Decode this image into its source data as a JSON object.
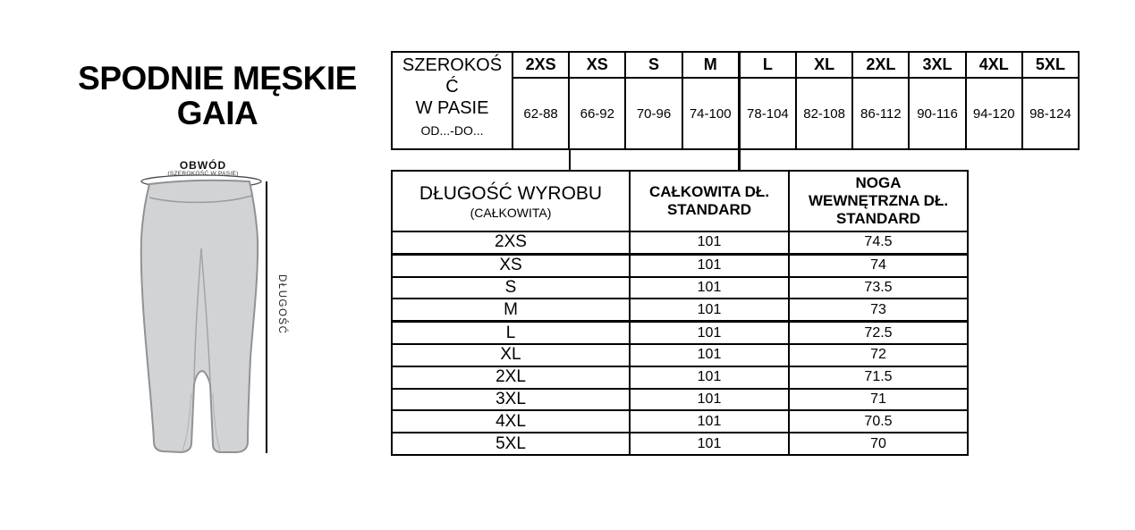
{
  "title": {
    "line1": "SPODNIE MĘSKIE",
    "line2": "GAIA"
  },
  "diagram": {
    "top_label": "OBWÓD",
    "top_sublabel": "(SZEROKOŚĆ W PASIE)",
    "side_label": "DŁUGOŚĆ",
    "garment_fill": "#d2d3d5",
    "garment_outline": "#909296"
  },
  "waist_table": {
    "header_title": "SZEROKOŚĆ",
    "header_line2": "W PASIE",
    "header_sub": "OD...-DO...",
    "sizes": [
      "2XS",
      "XS",
      "S",
      "M",
      "L",
      "XL",
      "2XL",
      "3XL",
      "4XL",
      "5XL"
    ],
    "ranges": [
      "62-88",
      "66-92",
      "70-96",
      "74-100",
      "78-104",
      "82-108",
      "86-112",
      "90-116",
      "94-120",
      "98-124"
    ]
  },
  "length_table": {
    "col1": {
      "title": "DŁUGOŚĆ WYROBU",
      "subtitle": "(CAŁKOWITA)"
    },
    "col2": {
      "line1": "CAŁKOWITA DŁ.",
      "line2": "STANDARD"
    },
    "col3": {
      "line1": "NOGA",
      "line2": "WEWNĘTRZNA DŁ.",
      "line3": "STANDARD"
    },
    "rows": [
      {
        "size": "2XS",
        "total_length": "101",
        "inner_leg": "74.5"
      },
      {
        "size": "XS",
        "total_length": "101",
        "inner_leg": "74"
      },
      {
        "size": "S",
        "total_length": "101",
        "inner_leg": "73.5"
      },
      {
        "size": "M",
        "total_length": "101",
        "inner_leg": "73"
      },
      {
        "size": "L",
        "total_length": "101",
        "inner_leg": "72.5"
      },
      {
        "size": "XL",
        "total_length": "101",
        "inner_leg": "72"
      },
      {
        "size": "2XL",
        "total_length": "101",
        "inner_leg": "71.5"
      },
      {
        "size": "3XL",
        "total_length": "101",
        "inner_leg": "71"
      },
      {
        "size": "4XL",
        "total_length": "101",
        "inner_leg": "70.5"
      },
      {
        "size": "5XL",
        "total_length": "101",
        "inner_leg": "70"
      }
    ]
  }
}
